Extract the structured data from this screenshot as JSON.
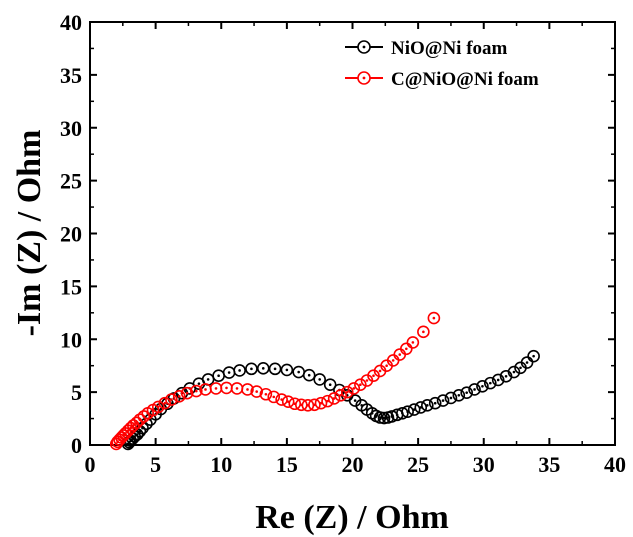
{
  "chart_data": {
    "type": "scatter",
    "xlabel": "Re (Z) / Ohm",
    "ylabel": "-Im (Z) / Ohm",
    "xlim": [
      0,
      40
    ],
    "ylim": [
      0,
      40
    ],
    "xticks": [
      0,
      5,
      10,
      15,
      20,
      25,
      30,
      35,
      40
    ],
    "yticks": [
      0,
      5,
      10,
      15,
      20,
      25,
      30,
      35,
      40
    ],
    "legend_position": "top-right",
    "grid": false,
    "series": [
      {
        "name": "NiO@Ni foam",
        "color": "#000000",
        "marker": "circle-dot",
        "points": [
          [
            2.9,
            0.1
          ],
          [
            3.0,
            0.25
          ],
          [
            3.1,
            0.4
          ],
          [
            3.25,
            0.6
          ],
          [
            3.4,
            0.8
          ],
          [
            3.6,
            1.0
          ],
          [
            3.8,
            1.3
          ],
          [
            4.0,
            1.6
          ],
          [
            4.3,
            2.0
          ],
          [
            4.6,
            2.4
          ],
          [
            5.0,
            2.9
          ],
          [
            5.4,
            3.4
          ],
          [
            5.9,
            3.9
          ],
          [
            6.4,
            4.4
          ],
          [
            7.0,
            4.9
          ],
          [
            7.6,
            5.35
          ],
          [
            8.3,
            5.8
          ],
          [
            9.0,
            6.2
          ],
          [
            9.8,
            6.55
          ],
          [
            10.6,
            6.85
          ],
          [
            11.4,
            7.05
          ],
          [
            12.3,
            7.2
          ],
          [
            13.2,
            7.25
          ],
          [
            14.1,
            7.2
          ],
          [
            15.0,
            7.1
          ],
          [
            15.9,
            6.9
          ],
          [
            16.7,
            6.6
          ],
          [
            17.5,
            6.2
          ],
          [
            18.3,
            5.7
          ],
          [
            19.0,
            5.2
          ],
          [
            19.6,
            4.7
          ],
          [
            20.2,
            4.2
          ],
          [
            20.7,
            3.75
          ],
          [
            21.1,
            3.35
          ],
          [
            21.5,
            3.0
          ],
          [
            21.8,
            2.75
          ],
          [
            22.1,
            2.6
          ],
          [
            22.4,
            2.55
          ],
          [
            22.7,
            2.6
          ],
          [
            23.0,
            2.7
          ],
          [
            23.4,
            2.85
          ],
          [
            23.8,
            3.0
          ],
          [
            24.2,
            3.15
          ],
          [
            24.7,
            3.35
          ],
          [
            25.2,
            3.55
          ],
          [
            25.7,
            3.75
          ],
          [
            26.3,
            3.95
          ],
          [
            26.9,
            4.2
          ],
          [
            27.5,
            4.45
          ],
          [
            28.1,
            4.7
          ],
          [
            28.7,
            4.95
          ],
          [
            29.3,
            5.25
          ],
          [
            29.9,
            5.55
          ],
          [
            30.5,
            5.85
          ],
          [
            31.1,
            6.15
          ],
          [
            31.7,
            6.5
          ],
          [
            32.3,
            6.9
          ],
          [
            32.8,
            7.3
          ],
          [
            33.3,
            7.8
          ],
          [
            33.8,
            8.4
          ]
        ]
      },
      {
        "name": "C@NiO@Ni foam",
        "color": "#ff0000",
        "marker": "circle-dot",
        "points": [
          [
            2.0,
            0.1
          ],
          [
            2.1,
            0.3
          ],
          [
            2.25,
            0.5
          ],
          [
            2.4,
            0.7
          ],
          [
            2.55,
            0.9
          ],
          [
            2.7,
            1.1
          ],
          [
            2.9,
            1.35
          ],
          [
            3.1,
            1.6
          ],
          [
            3.3,
            1.85
          ],
          [
            3.55,
            2.1
          ],
          [
            3.8,
            2.4
          ],
          [
            4.1,
            2.7
          ],
          [
            4.4,
            3.0
          ],
          [
            4.8,
            3.3
          ],
          [
            5.2,
            3.6
          ],
          [
            5.7,
            3.95
          ],
          [
            6.2,
            4.3
          ],
          [
            6.8,
            4.6
          ],
          [
            7.4,
            4.9
          ],
          [
            8.1,
            5.1
          ],
          [
            8.8,
            5.25
          ],
          [
            9.6,
            5.35
          ],
          [
            10.4,
            5.4
          ],
          [
            11.2,
            5.35
          ],
          [
            12.0,
            5.25
          ],
          [
            12.7,
            5.05
          ],
          [
            13.4,
            4.8
          ],
          [
            14.0,
            4.55
          ],
          [
            14.6,
            4.3
          ],
          [
            15.1,
            4.1
          ],
          [
            15.6,
            3.9
          ],
          [
            16.1,
            3.8
          ],
          [
            16.6,
            3.75
          ],
          [
            17.1,
            3.8
          ],
          [
            17.6,
            3.95
          ],
          [
            18.1,
            4.15
          ],
          [
            18.6,
            4.4
          ],
          [
            19.1,
            4.7
          ],
          [
            19.6,
            5.0
          ],
          [
            20.1,
            5.35
          ],
          [
            20.6,
            5.7
          ],
          [
            21.1,
            6.1
          ],
          [
            21.6,
            6.55
          ],
          [
            22.1,
            7.0
          ],
          [
            22.6,
            7.5
          ],
          [
            23.1,
            8.0
          ],
          [
            23.6,
            8.55
          ],
          [
            24.1,
            9.1
          ],
          [
            24.6,
            9.7
          ],
          [
            25.4,
            10.7
          ],
          [
            26.2,
            12.0
          ]
        ]
      }
    ]
  }
}
